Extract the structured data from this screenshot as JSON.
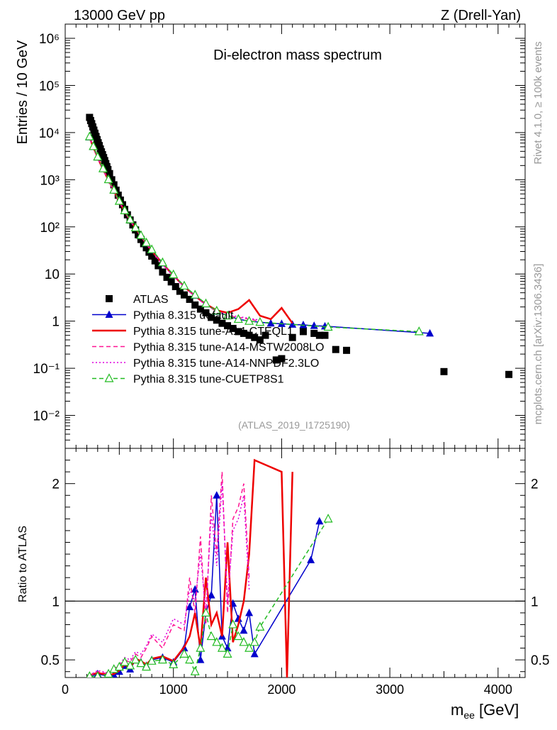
{
  "header": {
    "left": "13000 GeV pp",
    "right": "Z (Drell-Yan)"
  },
  "side_labels": {
    "rivet": "Rivet 4.1.0, ≥ 100k events",
    "mcplots": "mcplots.cern.ch [arXiv:1306.3436]"
  },
  "chart_data": [
    {
      "type": "scatter",
      "title": "Di-electron mass spectrum",
      "ylabel": "Entries / 10 GeV",
      "y_scale": "log",
      "ylim": [
        0.002,
        2000000
      ],
      "xlim": [
        0,
        4250
      ],
      "y_tick_labels": [
        "10⁻²",
        "10⁻¹",
        "1",
        "10",
        "10²",
        "10³",
        "10⁴",
        "10⁵",
        "10⁶"
      ],
      "y_tick_values": [
        0.01,
        0.1,
        1,
        10,
        100,
        1000,
        10000,
        100000,
        1000000
      ],
      "watermark": "(ATLAS_2019_I1725190)",
      "legend_position": "center-left",
      "series": [
        {
          "name": "ATLAS",
          "color": "#000000",
          "marker": "square",
          "x": [
            225,
            235,
            245,
            255,
            265,
            275,
            285,
            295,
            305,
            315,
            325,
            335,
            345,
            355,
            365,
            375,
            385,
            395,
            410,
            430,
            450,
            470,
            490,
            510,
            530,
            550,
            575,
            600,
            625,
            650,
            675,
            700,
            725,
            750,
            775,
            800,
            830,
            860,
            900,
            940,
            980,
            1020,
            1060,
            1100,
            1150,
            1200,
            1250,
            1300,
            1350,
            1400,
            1450,
            1500,
            1550,
            1600,
            1650,
            1700,
            1750,
            1800,
            1850,
            1950,
            2000,
            2100,
            2200,
            2300,
            2350,
            2400,
            2500,
            2600,
            3500,
            4100
          ],
          "y": [
            21000,
            18000,
            15500,
            13200,
            11300,
            9700,
            8300,
            7100,
            6100,
            5300,
            4500,
            3900,
            3400,
            2950,
            2550,
            2200,
            1900,
            1650,
            1350,
            1000,
            780,
            600,
            470,
            370,
            295,
            235,
            180,
            140,
            110,
            86,
            68,
            54,
            44,
            36,
            29,
            24,
            19,
            15,
            11,
            8.5,
            6.8,
            5.4,
            4.3,
            3.6,
            2.9,
            2.2,
            1.8,
            1.5,
            1.2,
            1.05,
            0.9,
            0.8,
            0.7,
            0.6,
            0.55,
            0.5,
            0.45,
            0.4,
            0.5,
            0.15,
            0.16,
            0.45,
            0.6,
            0.55,
            0.5,
            0.5,
            0.25,
            0.24,
            0.085,
            0.074
          ]
        },
        {
          "name": "Pythia 8.315 default",
          "color": "#0000cc",
          "marker": "triangle-filled",
          "line": "solid",
          "x": [
            225,
            260,
            300,
            350,
            400,
            450,
            500,
            550,
            600,
            650,
            700,
            750,
            800,
            900,
            1000,
            1100,
            1200,
            1300,
            1400,
            1500,
            1600,
            1700,
            1800,
            1900,
            2000,
            2100,
            2200,
            2300,
            2400,
            3370
          ],
          "y": [
            8000,
            5000,
            3000,
            1700,
            1000,
            600,
            350,
            220,
            140,
            95,
            65,
            45,
            32,
            17,
            9.5,
            5.5,
            3.5,
            2.3,
            1.6,
            1.3,
            1.1,
            1,
            0.95,
            0.9,
            0.88,
            0.85,
            0.83,
            0.8,
            0.78,
            0.55
          ]
        },
        {
          "name": "Pythia 8.315 tune-A14-CTEQL1",
          "color": "#ee0000",
          "marker": "none",
          "line": "solid",
          "x": [
            225,
            260,
            300,
            350,
            400,
            450,
            500,
            550,
            600,
            650,
            700,
            750,
            800,
            900,
            1000,
            1100,
            1200,
            1300,
            1400,
            1500,
            1600,
            1700,
            1800,
            1900,
            2000,
            2100
          ],
          "y": [
            7800,
            4900,
            2950,
            1650,
            980,
            590,
            340,
            215,
            138,
            93,
            64,
            44,
            31,
            16.5,
            9.3,
            5.4,
            3.4,
            2.3,
            1.7,
            1.5,
            1.8,
            2.8,
            1.3,
            1.1,
            1.9,
            0.9
          ]
        },
        {
          "name": "Pythia 8.315 tune-A14-MSTW2008LO",
          "color": "#ff1493",
          "marker": "none",
          "line": "dashed",
          "x": [
            225,
            260,
            300,
            350,
            400,
            450,
            500,
            550,
            600,
            650,
            700,
            750,
            800,
            900,
            1000,
            1100,
            1200,
            1300,
            1400,
            1500,
            1600,
            1700,
            1800
          ],
          "y": [
            7600,
            4800,
            2900,
            1620,
            960,
            580,
            335,
            210,
            135,
            90,
            63,
            43,
            30,
            16,
            9,
            5.3,
            3.3,
            2.2,
            1.6,
            1.3,
            1.2,
            1.1,
            1
          ]
        },
        {
          "name": "Pythia 8.315 tune-A14-NNPDF2.3LO",
          "color": "#dd00dd",
          "marker": "none",
          "line": "dotted",
          "x": [
            225,
            260,
            300,
            350,
            400,
            450,
            500,
            550,
            600,
            650,
            700,
            750,
            800,
            900,
            1000,
            1100,
            1200,
            1300,
            1400,
            1500,
            1600,
            1700,
            1800
          ],
          "y": [
            7700,
            4850,
            2920,
            1640,
            970,
            585,
            338,
            212,
            136,
            91,
            63.5,
            43.5,
            30.5,
            16.2,
            9.1,
            5.35,
            3.35,
            2.25,
            1.65,
            1.35,
            1.25,
            1.15,
            1.05
          ]
        },
        {
          "name": "Pythia 8.315 tune-CUETP8S1",
          "color": "#22bb22",
          "marker": "triangle-open",
          "line": "dashed",
          "x": [
            225,
            260,
            300,
            350,
            400,
            450,
            500,
            550,
            600,
            650,
            700,
            750,
            800,
            900,
            1000,
            1100,
            1200,
            1300,
            1400,
            1500,
            1600,
            1700,
            1800,
            2430,
            3270
          ],
          "y": [
            8200,
            5100,
            3050,
            1720,
            1010,
            605,
            352,
            222,
            142,
            96,
            66,
            46,
            33,
            17.5,
            9.7,
            5.6,
            3.6,
            2.35,
            1.65,
            1.3,
            1.1,
            1,
            0.95,
            0.75,
            0.6
          ]
        }
      ]
    },
    {
      "type": "line",
      "ylabel": "Ratio to ATLAS",
      "xlabel": "m_ee [GeV]",
      "xlim": [
        0,
        4250
      ],
      "ylim": [
        0.35,
        2.3
      ],
      "x_tick_labels": [
        "0",
        "1000",
        "2000",
        "3000",
        "4000"
      ],
      "x_tick_values": [
        0,
        1000,
        2000,
        3000,
        4000
      ],
      "y_tick_labels": [
        "0.5",
        "1",
        "2"
      ],
      "y_tick_values": [
        0.5,
        1,
        2
      ],
      "reference_line": 1,
      "series": [
        {
          "name": "Pythia 8.315 default",
          "color": "#0000cc",
          "marker": "triangle-filled",
          "line": "solid",
          "x": [
            225,
            300,
            400,
            450,
            500,
            550,
            600,
            650,
            700,
            750,
            800,
            900,
            1000,
            1100,
            1150,
            1200,
            1250,
            1300,
            1350,
            1400,
            1450,
            1500,
            1550,
            1600,
            1650,
            1700,
            1750,
            2270,
            2350
          ],
          "y": [
            0.36,
            0.38,
            0.36,
            0.37,
            0.4,
            0.45,
            0.42,
            0.5,
            0.48,
            0.45,
            0.5,
            0.52,
            0.48,
            0.6,
            0.95,
            1.1,
            0.5,
            0.9,
            1.05,
            1.9,
            0.7,
            0.6,
            0.98,
            0.85,
            0.75,
            0.9,
            0.55,
            1.35,
            1.68
          ]
        },
        {
          "name": "Pythia 8.315 tune-A14-CTEQL1",
          "color": "#ee0000",
          "marker": "none",
          "line": "solid",
          "x": [
            225,
            300,
            400,
            450,
            500,
            550,
            600,
            650,
            700,
            750,
            800,
            900,
            1000,
            1100,
            1150,
            1200,
            1250,
            1300,
            1350,
            1400,
            1450,
            1500,
            1550,
            1600,
            1650,
            1700,
            1750,
            2000,
            2050,
            2100
          ],
          "y": [
            0.37,
            0.39,
            0.37,
            0.38,
            0.41,
            0.46,
            0.43,
            0.51,
            0.49,
            0.46,
            0.51,
            0.53,
            0.49,
            0.61,
            0.7,
            0.9,
            0.6,
            1.2,
            0.8,
            0.9,
            0.7,
            1.5,
            0.65,
            0.8,
            1.0,
            1.4,
            2.2,
            2.1,
            0.35,
            2.1
          ]
        },
        {
          "name": "Pythia 8.315 tune-A14-MSTW2008LO",
          "color": "#ff1493",
          "marker": "none",
          "line": "dashed",
          "x": [
            225,
            300,
            400,
            450,
            500,
            550,
            600,
            650,
            700,
            750,
            800,
            900,
            1000,
            1100,
            1150,
            1200,
            1250,
            1300,
            1350,
            1400,
            1450,
            1500,
            1550,
            1600,
            1650,
            1700
          ],
          "y": [
            0.36,
            0.4,
            0.38,
            0.42,
            0.45,
            0.5,
            0.48,
            0.55,
            0.52,
            0.6,
            0.7,
            0.6,
            0.8,
            0.75,
            1.2,
            0.9,
            1.55,
            0.8,
            1.9,
            1.4,
            2.1,
            0.9,
            1.7,
            1.8,
            2.0,
            1.2
          ]
        },
        {
          "name": "Pythia 8.315 tune-A14-NNPDF2.3LO",
          "color": "#dd00dd",
          "marker": "none",
          "line": "dotted",
          "x": [
            225,
            300,
            400,
            450,
            500,
            550,
            600,
            650,
            700,
            750,
            800,
            900,
            1000,
            1100,
            1150,
            1200,
            1250,
            1300,
            1350,
            1400,
            1450,
            1500,
            1550,
            1600,
            1650,
            1700
          ],
          "y": [
            0.37,
            0.41,
            0.39,
            0.43,
            0.46,
            0.52,
            0.5,
            0.57,
            0.55,
            0.62,
            0.72,
            0.65,
            0.85,
            0.8,
            1.1,
            1.0,
            1.4,
            0.9,
            1.75,
            1.3,
            2.0,
            1.0,
            1.6,
            1.7,
            1.9,
            1.1
          ]
        },
        {
          "name": "Pythia 8.315 tune-CUETP8S1",
          "color": "#22bb22",
          "marker": "triangle-open",
          "line": "dashed",
          "x": [
            225,
            300,
            400,
            450,
            500,
            550,
            600,
            650,
            700,
            750,
            800,
            900,
            1000,
            1100,
            1150,
            1200,
            1250,
            1300,
            1350,
            1400,
            1450,
            1500,
            1550,
            1600,
            1650,
            1700,
            1750,
            1800,
            2430
          ],
          "y": [
            0.36,
            0.36,
            0.38,
            0.42,
            0.44,
            0.48,
            0.45,
            0.5,
            0.47,
            0.44,
            0.49,
            0.5,
            0.46,
            0.55,
            0.5,
            0.4,
            0.6,
            0.9,
            0.7,
            0.65,
            0.6,
            0.55,
            0.8,
            0.7,
            0.65,
            0.6,
            0.65,
            0.78,
            1.7
          ]
        }
      ]
    }
  ]
}
